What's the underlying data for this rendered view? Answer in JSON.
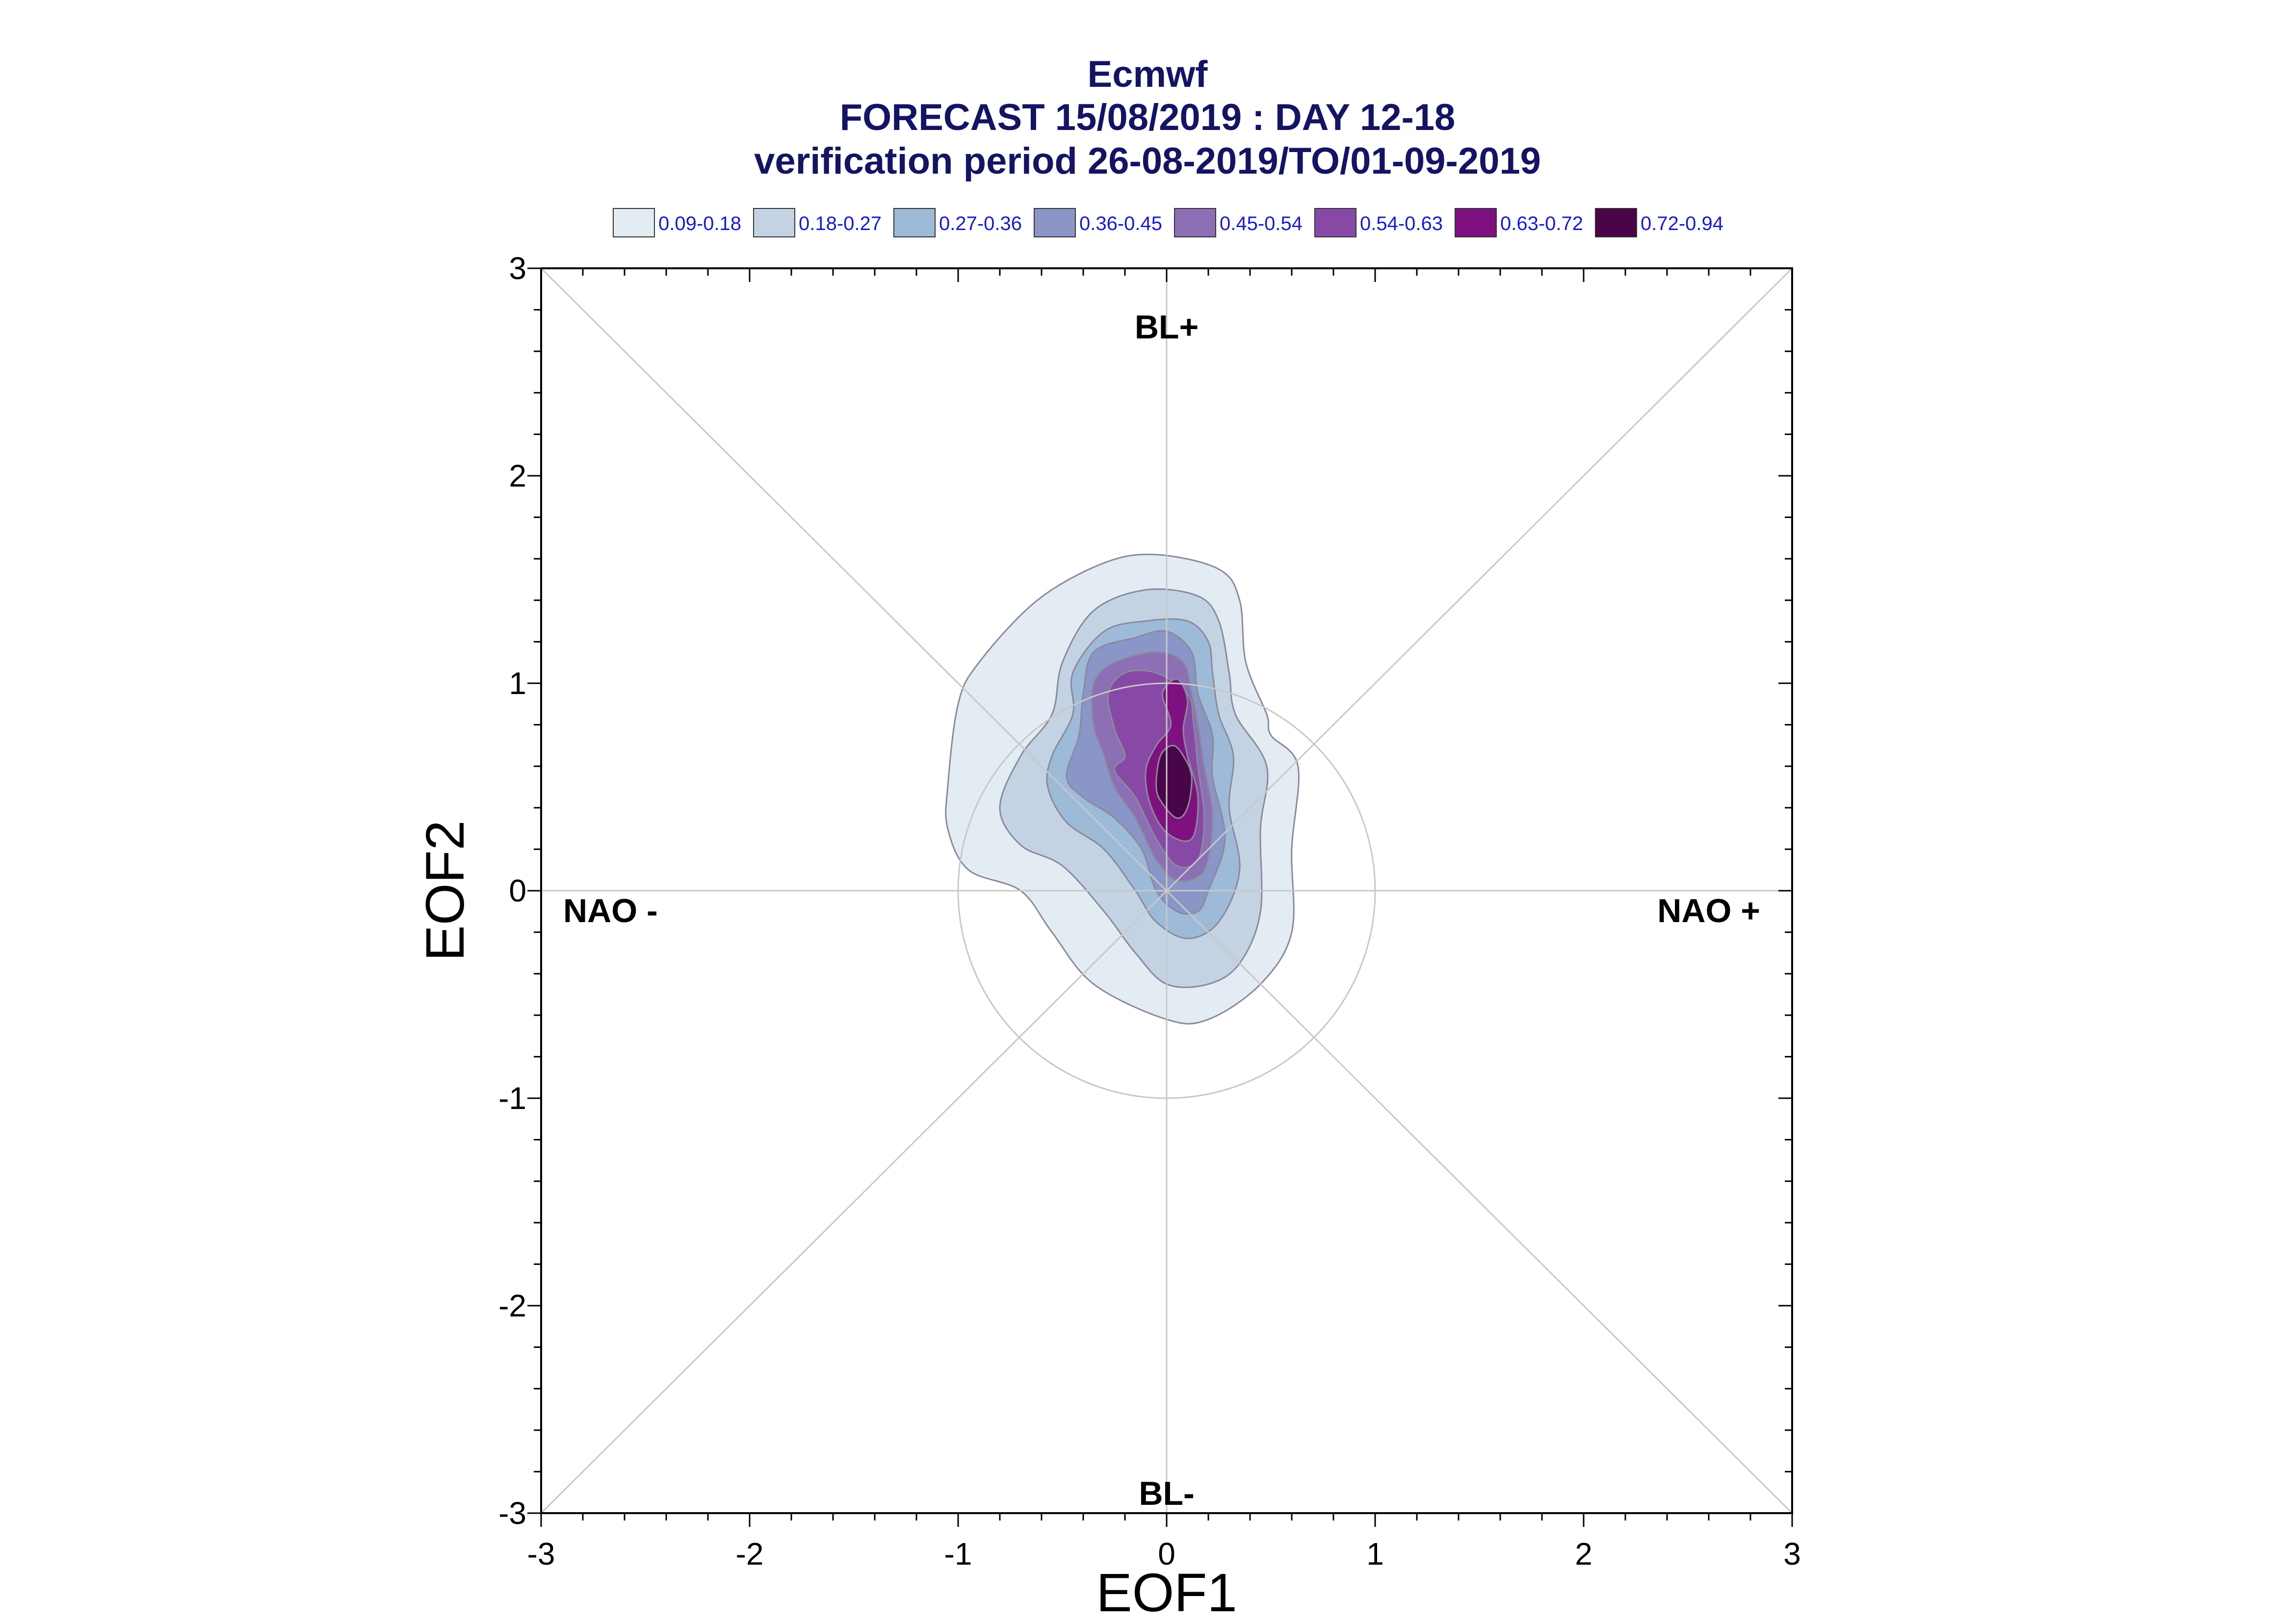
{
  "chart_data": {
    "type": "contour",
    "title": "Ecmwf",
    "subtitle_1": "FORECAST 15/08/2019 : DAY 12-18",
    "subtitle_2": "verification period 26-08-2019/TO/01-09-2019",
    "xlabel": "EOF1",
    "ylabel": "EOF2",
    "xlim": [
      -3,
      3
    ],
    "ylim": [
      -3,
      3
    ],
    "xticks": [
      "-3",
      "-2",
      "-1",
      "0",
      "1",
      "2",
      "3"
    ],
    "yticks": [
      "-3",
      "-2",
      "-1",
      "0",
      "1",
      "2",
      "3"
    ],
    "region_labels": {
      "top": "BL+",
      "bottom": "BL-",
      "left": "NAO -",
      "right": "NAO +"
    },
    "reference_circle_radius": 1,
    "legend_position": "top",
    "legend": [
      {
        "label": "0.09-0.18",
        "color": "#e3ecf3"
      },
      {
        "label": "0.18-0.27",
        "color": "#c3d3e4"
      },
      {
        "label": "0.27-0.36",
        "color": "#9ebad9"
      },
      {
        "label": "0.36-0.45",
        "color": "#8a96c8"
      },
      {
        "label": "0.45-0.54",
        "color": "#8d6fb5"
      },
      {
        "label": "0.54-0.63",
        "color": "#8849a6"
      },
      {
        "label": "0.63-0.72",
        "color": "#7e117f"
      },
      {
        "label": "0.72-0.94",
        "color": "#4a0448"
      }
    ],
    "density_levels": [
      {
        "range": "0.09-0.18",
        "polygon": [
          [
            0.45,
            -0.45
          ],
          [
            0.6,
            -0.2
          ],
          [
            0.6,
            0.2
          ],
          [
            0.63,
            0.6
          ],
          [
            0.5,
            0.75
          ],
          [
            0.48,
            0.85
          ],
          [
            0.38,
            1.1
          ],
          [
            0.35,
            1.4
          ],
          [
            0.25,
            1.55
          ],
          [
            -0.05,
            1.62
          ],
          [
            -0.3,
            1.58
          ],
          [
            -0.62,
            1.4
          ],
          [
            -0.9,
            1.1
          ],
          [
            -1.0,
            0.9
          ],
          [
            -1.05,
            0.5
          ],
          [
            -1.05,
            0.3
          ],
          [
            -0.95,
            0.1
          ],
          [
            -0.7,
            0.0
          ],
          [
            -0.55,
            -0.2
          ],
          [
            -0.35,
            -0.45
          ],
          [
            0.0,
            -0.62
          ],
          [
            0.2,
            -0.62
          ]
        ]
      },
      {
        "range": "0.18-0.27",
        "polygon": [
          [
            0.35,
            -0.35
          ],
          [
            0.45,
            -0.1
          ],
          [
            0.45,
            0.3
          ],
          [
            0.48,
            0.6
          ],
          [
            0.33,
            0.85
          ],
          [
            0.3,
            1.05
          ],
          [
            0.25,
            1.3
          ],
          [
            0.15,
            1.42
          ],
          [
            -0.1,
            1.45
          ],
          [
            -0.35,
            1.35
          ],
          [
            -0.5,
            1.1
          ],
          [
            -0.55,
            0.85
          ],
          [
            -0.7,
            0.65
          ],
          [
            -0.8,
            0.4
          ],
          [
            -0.7,
            0.22
          ],
          [
            -0.5,
            0.12
          ],
          [
            -0.3,
            -0.1
          ],
          [
            -0.15,
            -0.3
          ],
          [
            0.0,
            -0.45
          ],
          [
            0.2,
            -0.45
          ]
        ]
      },
      {
        "range": "0.27-0.36",
        "polygon": [
          [
            0.25,
            -0.15
          ],
          [
            0.35,
            0.1
          ],
          [
            0.3,
            0.4
          ],
          [
            0.32,
            0.65
          ],
          [
            0.25,
            0.85
          ],
          [
            0.22,
            1.05
          ],
          [
            0.2,
            1.2
          ],
          [
            0.1,
            1.3
          ],
          [
            -0.1,
            1.3
          ],
          [
            -0.3,
            1.25
          ],
          [
            -0.45,
            1.05
          ],
          [
            -0.45,
            0.85
          ],
          [
            -0.55,
            0.65
          ],
          [
            -0.57,
            0.5
          ],
          [
            -0.48,
            0.33
          ],
          [
            -0.3,
            0.2
          ],
          [
            -0.15,
            0.0
          ],
          [
            -0.05,
            -0.15
          ],
          [
            0.1,
            -0.23
          ]
        ]
      },
      {
        "range": "0.36-0.45",
        "polygon": [
          [
            0.2,
            0.0
          ],
          [
            0.28,
            0.25
          ],
          [
            0.22,
            0.55
          ],
          [
            0.22,
            0.75
          ],
          [
            0.15,
            0.95
          ],
          [
            0.12,
            1.15
          ],
          [
            0.0,
            1.25
          ],
          [
            -0.15,
            1.22
          ],
          [
            -0.35,
            1.15
          ],
          [
            -0.4,
            0.95
          ],
          [
            -0.42,
            0.75
          ],
          [
            -0.48,
            0.55
          ],
          [
            -0.4,
            0.45
          ],
          [
            -0.25,
            0.35
          ],
          [
            -0.12,
            0.2
          ],
          [
            -0.05,
            0.0
          ],
          [
            0.05,
            -0.1
          ],
          [
            0.15,
            -0.1
          ]
        ]
      },
      {
        "range": "0.45-0.54",
        "polygon": [
          [
            0.18,
            0.1
          ],
          [
            0.22,
            0.35
          ],
          [
            0.18,
            0.6
          ],
          [
            0.15,
            0.8
          ],
          [
            0.12,
            0.95
          ],
          [
            0.08,
            1.1
          ],
          [
            -0.05,
            1.15
          ],
          [
            -0.25,
            1.1
          ],
          [
            -0.35,
            1.0
          ],
          [
            -0.35,
            0.8
          ],
          [
            -0.3,
            0.65
          ],
          [
            -0.25,
            0.5
          ],
          [
            -0.15,
            0.35
          ],
          [
            -0.05,
            0.15
          ],
          [
            0.05,
            0.05
          ]
        ]
      },
      {
        "range": "0.54-0.63",
        "polygon": [
          [
            0.15,
            0.15
          ],
          [
            0.18,
            0.35
          ],
          [
            0.15,
            0.6
          ],
          [
            0.13,
            0.8
          ],
          [
            0.1,
            0.95
          ],
          [
            -0.05,
            1.05
          ],
          [
            -0.2,
            1.05
          ],
          [
            -0.28,
            0.95
          ],
          [
            -0.25,
            0.78
          ],
          [
            -0.2,
            0.65
          ],
          [
            -0.25,
            0.58
          ],
          [
            -0.15,
            0.45
          ],
          [
            -0.05,
            0.25
          ],
          [
            0.05,
            0.12
          ]
        ]
      },
      {
        "range": "0.63-0.72",
        "polygon": [
          [
            0.12,
            0.25
          ],
          [
            0.15,
            0.45
          ],
          [
            0.1,
            0.65
          ],
          [
            0.08,
            0.78
          ],
          [
            0.1,
            0.92
          ],
          [
            0.05,
            1.02
          ],
          [
            -0.02,
            0.95
          ],
          [
            0.02,
            0.8
          ],
          [
            -0.05,
            0.7
          ],
          [
            -0.1,
            0.58
          ],
          [
            -0.08,
            0.42
          ],
          [
            0.0,
            0.28
          ]
        ]
      },
      {
        "range": "0.72-0.94",
        "polygon": [
          [
            0.1,
            0.4
          ],
          [
            0.12,
            0.55
          ],
          [
            0.08,
            0.65
          ],
          [
            0.03,
            0.7
          ],
          [
            -0.03,
            0.65
          ],
          [
            -0.05,
            0.5
          ],
          [
            -0.02,
            0.42
          ],
          [
            0.05,
            0.35
          ]
        ]
      }
    ]
  }
}
